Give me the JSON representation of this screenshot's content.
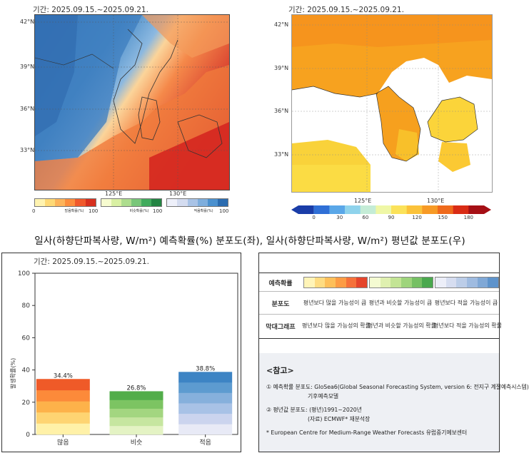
{
  "period_text": "기간: 2025.09.15.~2025.09.21.",
  "left_map": {
    "lat_labels": [
      "42°N",
      "39°N",
      "36°N",
      "33°N"
    ],
    "lon_labels": [
      "125°E",
      "130°E"
    ],
    "colorbars": [
      {
        "label": "많음확률(%)",
        "min": "0",
        "max": "100",
        "colors": [
          "#fff3b0",
          "#fed976",
          "#fdb45a",
          "#fc8d3c",
          "#f0592b",
          "#d7301f"
        ]
      },
      {
        "label": "비슷확률(%)",
        "min": "",
        "max": "100",
        "colors": [
          "#f7fcd0",
          "#d9f0a3",
          "#addd8e",
          "#78c679",
          "#41ab5d",
          "#238443"
        ]
      },
      {
        "label": "적음확률(%)",
        "min": "",
        "max": "100",
        "colors": [
          "#eef0fa",
          "#d4dcf0",
          "#a9c3e6",
          "#7eaedd",
          "#4b91cf",
          "#2b6cb0"
        ]
      }
    ]
  },
  "right_map": {
    "lat_labels": [
      "42°N",
      "39°N",
      "36°N",
      "33°N"
    ],
    "lon_labels": [
      "125°E",
      "130°E"
    ],
    "colorbar_ticks": [
      "0",
      "30",
      "60",
      "90",
      "120",
      "150",
      "180"
    ],
    "colorbar_colors": [
      "#1a3da8",
      "#2f6fd6",
      "#5aa7e8",
      "#8fd3ec",
      "#c4ecd6",
      "#eff7a6",
      "#fbe25a",
      "#fbc23a",
      "#f79a25",
      "#ef6a1c",
      "#d92c15",
      "#a50f15"
    ]
  },
  "caption": "일사(하향단파복사량, W/m²) 예측확률(%) 분포도(좌), 일사(하향단파복사량, W/m²) 평년값 분포도(우)",
  "chart_data": {
    "type": "bar",
    "title": "기간: 2025.09.15.~2025.09.21.",
    "ylabel": "발생확률(%)",
    "xlabel": "",
    "ylim": [
      0,
      100
    ],
    "y_ticks": [
      "0",
      "20",
      "40",
      "60",
      "80",
      "100"
    ],
    "categories": [
      "많음",
      "비슷",
      "적음"
    ],
    "values": [
      34.4,
      26.8,
      38.8
    ],
    "value_labels": [
      "34.4%",
      "26.8%",
      "38.8%"
    ],
    "bar_palettes": [
      [
        "#fff1a8",
        "#fed472",
        "#fdb24a",
        "#fc8a3a",
        "#ef5a28"
      ],
      [
        "#e4f3c4",
        "#c6e6a0",
        "#a3d680",
        "#7cc462",
        "#52ad4a"
      ],
      [
        "#e8eaf6",
        "#cbd4ee",
        "#a8c2e6",
        "#86b0dc",
        "#5d9bd0",
        "#3d84c4"
      ]
    ]
  },
  "legend": {
    "rows": [
      {
        "label": "예측확률",
        "cells": []
      },
      {
        "label": "분포도",
        "cells": [
          "평년보다 많을 가능성이 큼",
          "평년과 비슷할 가능성이 큼",
          "평년보다 적을 가능성이 큼"
        ]
      },
      {
        "label": "막대그래프",
        "cells": [
          "평년보다 많을 가능성의 확률",
          "평년과 비슷할 가능성의 확률",
          "평년보다 적을 가능성의 확률"
        ]
      }
    ],
    "swatches": [
      [
        "#fff4b8",
        "#fedc82",
        "#fdbf5a",
        "#fc9c45",
        "#f5713a",
        "#e5452c"
      ],
      [
        "#f4fbd2",
        "#dff0b0",
        "#c3e495",
        "#9ed47c",
        "#76c064",
        "#4aa84e"
      ],
      [
        "#eceef8",
        "#d6ddf0",
        "#bccde8",
        "#9fbbe0",
        "#80a8d6",
        "#5e93cb"
      ]
    ]
  },
  "reference": {
    "title": "<참고>",
    "lines": [
      "① 예측확률 분포도: GloSea6(Global Seasonal Forecasting System, version 6: 전지구 계절예측시스템)",
      "기후예측모델",
      "② 평년값 분포도: (평년)1991~2020년",
      "(자료) ECMWF* 재분석장",
      "* European Centre for Medium-Range Weather Forecasts 유럽중기예보센터"
    ]
  }
}
